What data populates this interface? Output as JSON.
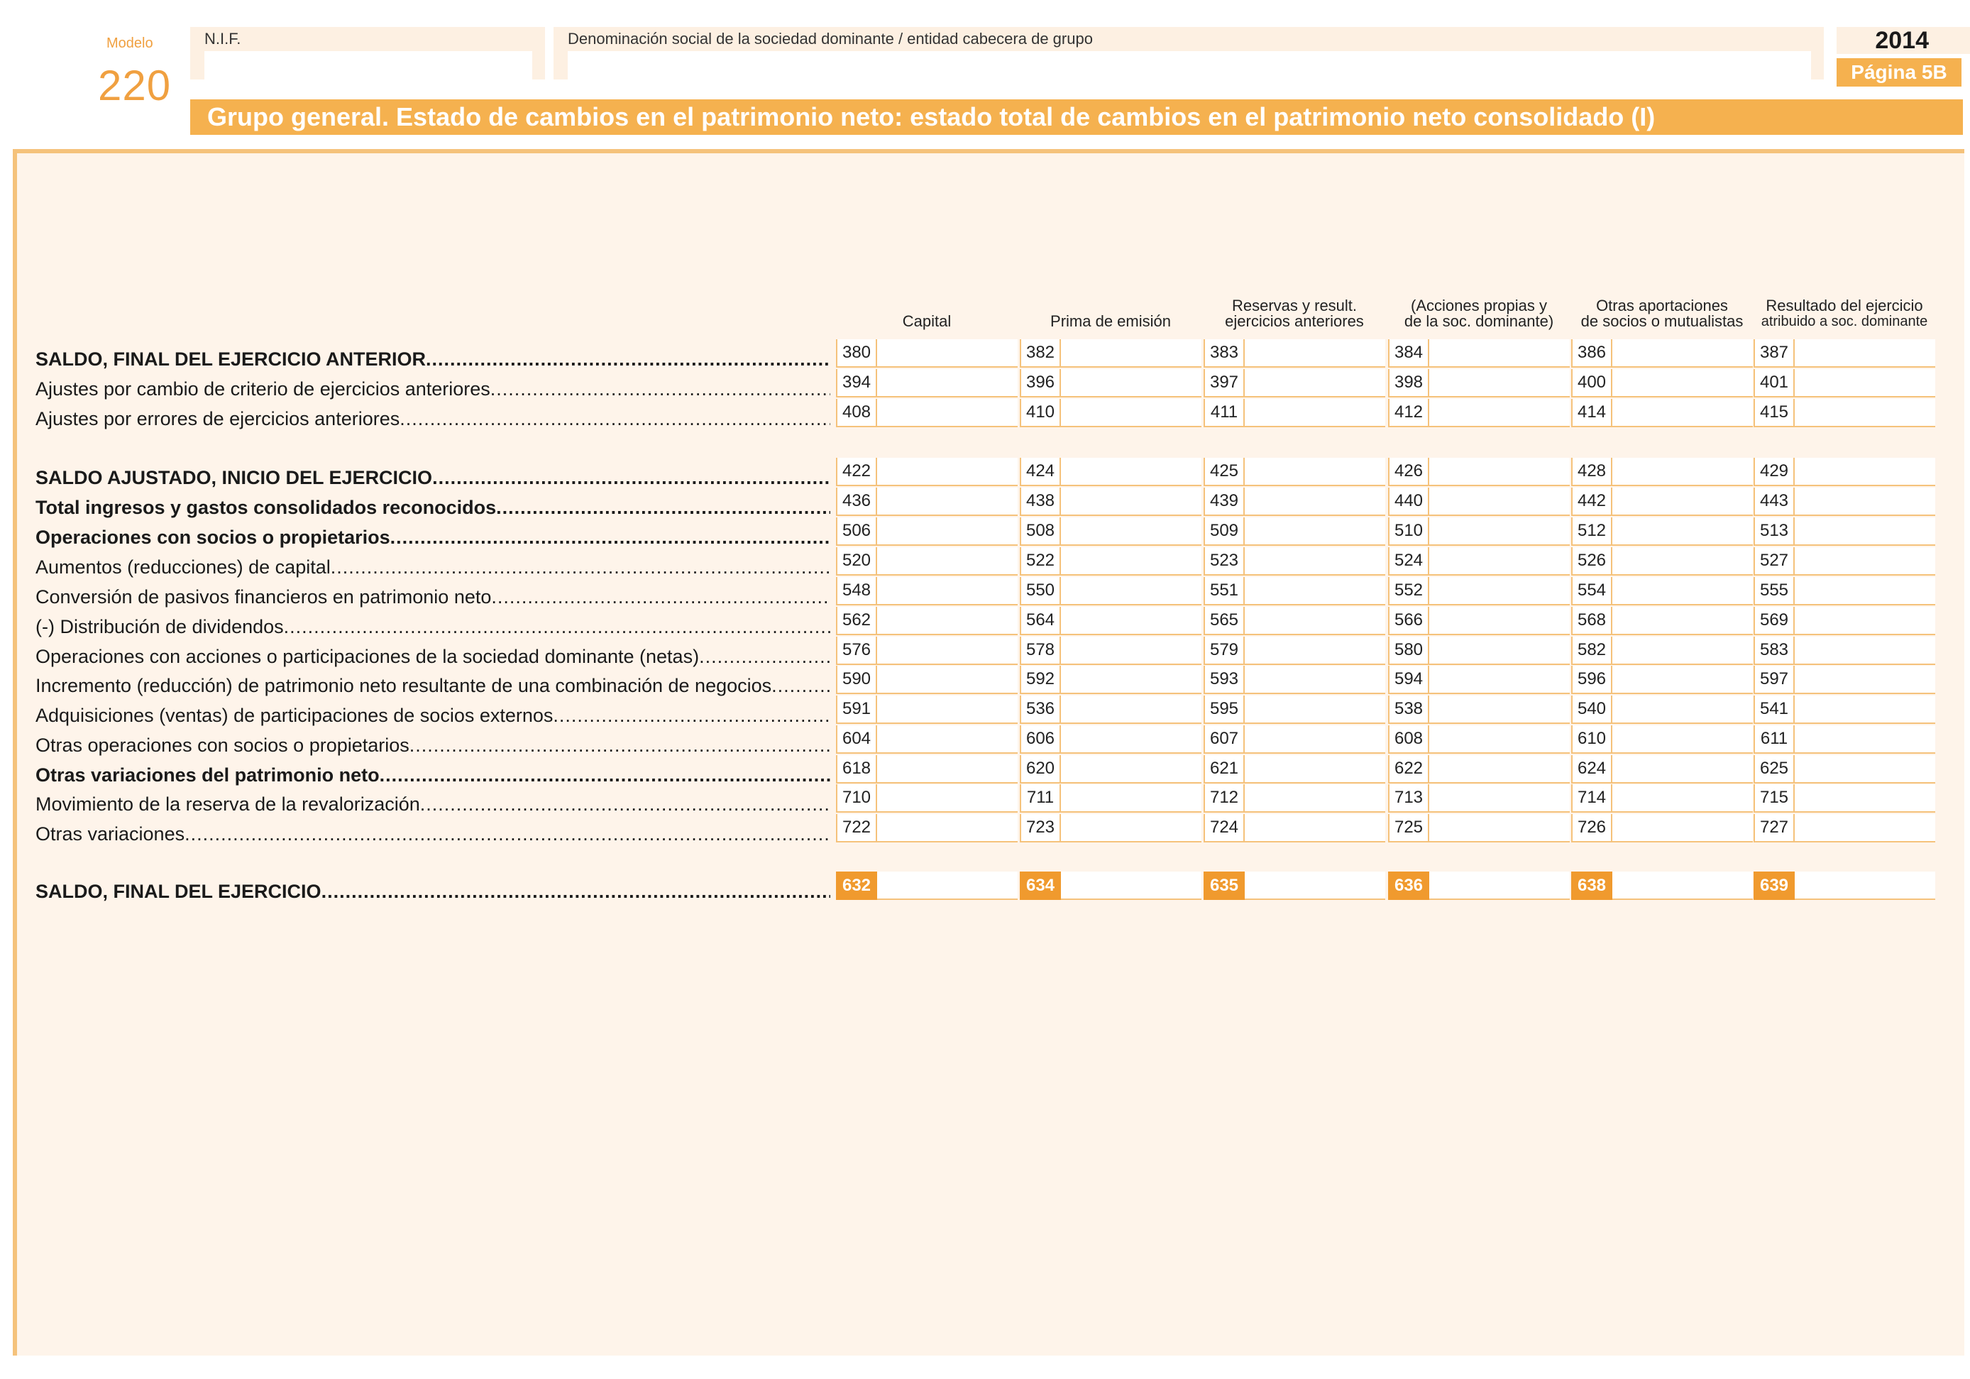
{
  "header": {
    "modelo_label": "Modelo",
    "modelo_number": "220",
    "nif_label": "N.I.F.",
    "denominacion_label": "Denominación social de la sociedad dominante / entidad cabecera de grupo",
    "year": "2014",
    "page_label": "Página 5B",
    "title": "Grupo general. Estado de cambios en el patrimonio neto: estado total de cambios en el patrimonio neto consolidado (I)"
  },
  "columns": [
    {
      "line1": "",
      "line2": "Capital"
    },
    {
      "line1": "",
      "line2": "Prima de emisión"
    },
    {
      "line1": "Reservas y result.",
      "line2": "ejercicios anteriores"
    },
    {
      "line1": "(Acciones propias y",
      "line2": "de la soc. dominante)"
    },
    {
      "line1": "Otras aportaciones",
      "line2": "de socios o mutualistas"
    },
    {
      "line1": "Resultado del ejercicio",
      "line2": "atribuido a soc. dominante"
    }
  ],
  "rows": [
    {
      "label": "SALDO, FINAL DEL EJERCICIO ANTERIOR",
      "bold": true,
      "codes": [
        "380",
        "382",
        "383",
        "384",
        "386",
        "387"
      ]
    },
    {
      "label": "Ajustes por cambio de criterio de ejercicios anteriores",
      "bold": false,
      "codes": [
        "394",
        "396",
        "397",
        "398",
        "400",
        "401"
      ]
    },
    {
      "label": "Ajustes por errores de ejercicios anteriores",
      "bold": false,
      "codes": [
        "408",
        "410",
        "411",
        "412",
        "414",
        "415"
      ]
    },
    {
      "label": "SALDO AJUSTADO, INICIO DEL EJERCICIO",
      "bold": true,
      "codes": [
        "422",
        "424",
        "425",
        "426",
        "428",
        "429"
      ]
    },
    {
      "label": "Total ingresos y gastos consolidados reconocidos",
      "bold": true,
      "codes": [
        "436",
        "438",
        "439",
        "440",
        "442",
        "443"
      ]
    },
    {
      "label": "Operaciones con socios o propietarios",
      "bold": true,
      "codes": [
        "506",
        "508",
        "509",
        "510",
        "512",
        "513"
      ]
    },
    {
      "label": "Aumentos (reducciones) de capital ",
      "bold": false,
      "codes": [
        "520",
        "522",
        "523",
        "524",
        "526",
        "527"
      ]
    },
    {
      "label": "Conversión de pasivos financieros en patrimonio neto",
      "bold": false,
      "codes": [
        "548",
        "550",
        "551",
        "552",
        "554",
        "555"
      ]
    },
    {
      "label": "(-) Distribución de dividendos",
      "bold": false,
      "codes": [
        "562",
        "564",
        "565",
        "566",
        "568",
        "569"
      ]
    },
    {
      "label": "Operaciones con acciones o participaciones de la sociedad dominante (netas)",
      "bold": false,
      "codes": [
        "576",
        "578",
        "579",
        "580",
        "582",
        "583"
      ]
    },
    {
      "label": "Incremento (reducción) de patrimonio neto resultante de una combinación de negocios ",
      "bold": false,
      "codes": [
        "590",
        "592",
        "593",
        "594",
        "596",
        "597"
      ]
    },
    {
      "label": "Adquisiciones (ventas) de participaciones de socios externos",
      "bold": false,
      "codes": [
        "591",
        "536",
        "595",
        "538",
        "540",
        "541"
      ]
    },
    {
      "label": "Otras operaciones con socios o propietarios",
      "bold": false,
      "codes": [
        "604",
        "606",
        "607",
        "608",
        "610",
        "611"
      ]
    },
    {
      "label": "Otras variaciones del patrimonio neto",
      "bold": true,
      "codes": [
        "618",
        "620",
        "621",
        "622",
        "624",
        "625"
      ]
    },
    {
      "label": "Movimiento de la reserva de la revalorización",
      "bold": false,
      "codes": [
        "710",
        "711",
        "712",
        "713",
        "714",
        "715"
      ]
    },
    {
      "label": "Otras variaciones ",
      "bold": false,
      "codes": [
        "722",
        "723",
        "724",
        "725",
        "726",
        "727"
      ]
    },
    {
      "label": "SALDO, FINAL DEL EJERCICIO",
      "bold": true,
      "total": true,
      "codes": [
        "632",
        "634",
        "635",
        "636",
        "638",
        "639"
      ]
    }
  ],
  "colors": {
    "accent": "#f5b14f",
    "panel": "#fef4ea",
    "total_code": "#f09a2e"
  }
}
